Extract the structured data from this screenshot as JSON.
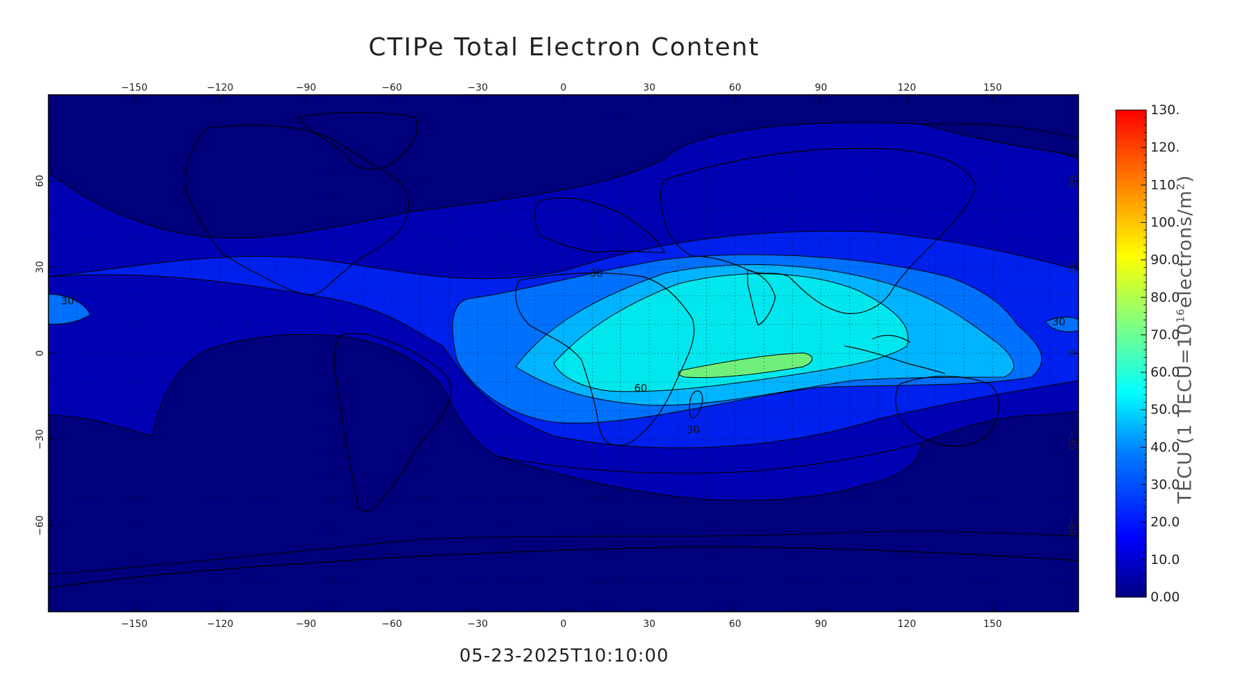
{
  "title": "CTIPe Total Electron Content",
  "timestamp": "05-23-2025T10:10:00",
  "colorbar": {
    "label_prefix": "TECU (1 TECU=10",
    "label_exp": "16",
    "label_mid": "electrons/m",
    "label_exp2": "2",
    "label_suffix": ")",
    "ticks": [
      "0.00",
      "10.0",
      "20.0",
      "30.0",
      "40.0",
      "50.0",
      "60.0",
      "70.0",
      "80.0",
      "90.0",
      "100.",
      "110.",
      "120.",
      "130."
    ],
    "min": 0,
    "max": 130,
    "colors": [
      "#000080",
      "#0000ff",
      "#0080ff",
      "#00ffff",
      "#80ff80",
      "#ffff00",
      "#ff8000",
      "#ff0000"
    ]
  },
  "axes": {
    "lon_ticks": [
      -150,
      -120,
      -90,
      -60,
      -30,
      0,
      30,
      60,
      90,
      120,
      150
    ],
    "lat_ticks": [
      60,
      30,
      0,
      -30,
      -60
    ],
    "lon_range": [
      -180,
      180
    ],
    "lat_range": [
      -90,
      90
    ],
    "grid": true
  },
  "contour_labels": [
    "30",
    "30",
    "30",
    "60",
    "30"
  ],
  "fill_colors": {
    "level_0_10": "#00007c",
    "level_10_20": "#0000b4",
    "level_20_30": "#0020ee",
    "level_30_40": "#0070ff",
    "level_40_50": "#00b4ff",
    "level_50_60": "#00e8ee",
    "level_60_70": "#70f07a"
  }
}
